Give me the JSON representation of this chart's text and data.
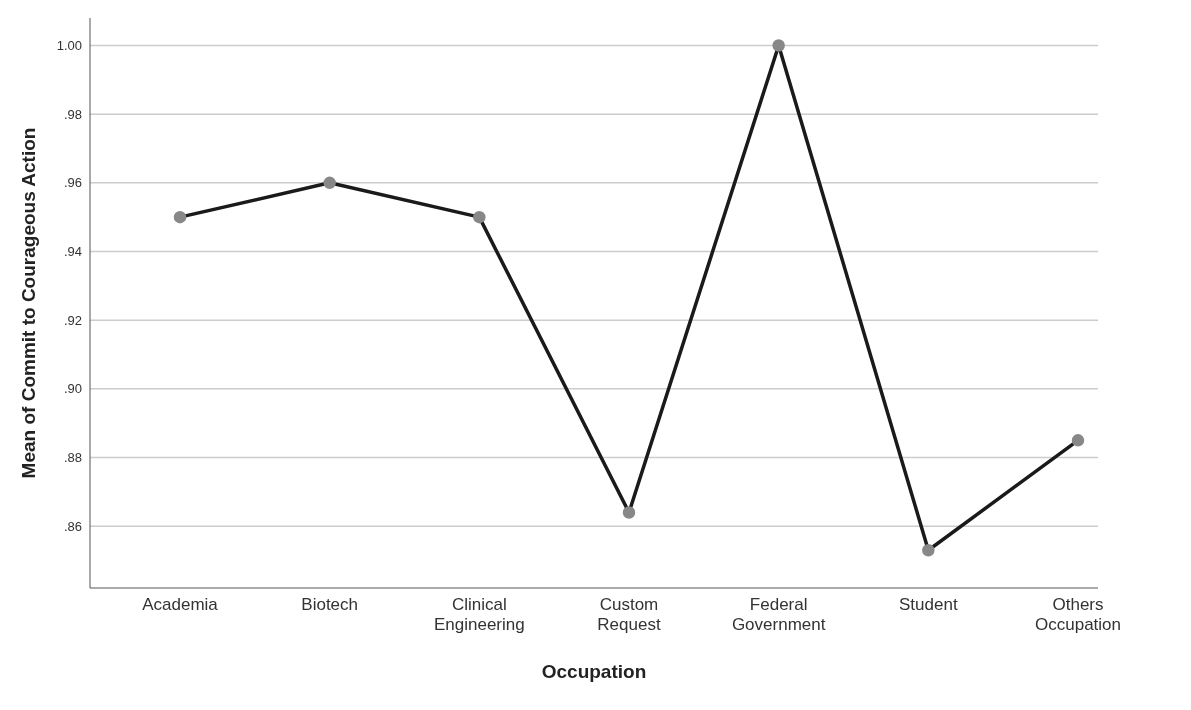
{
  "chart_data": {
    "type": "line",
    "xlabel": "Occupation",
    "ylabel": "Mean of Commit to Courageous Action",
    "categories": [
      "Academia",
      "Biotech",
      "Clinical Engineering",
      "Custom Request",
      "Federal Government",
      "Student",
      "Others Occupation"
    ],
    "series": [
      {
        "color": "#1a1a1a",
        "values": [
          0.95,
          0.96,
          0.95,
          0.864,
          1.0,
          0.853,
          0.885
        ]
      }
    ],
    "ylim": [
      0.842,
      1.008
    ],
    "yticks": [
      {
        "value": 0.86,
        "label": ".86"
      },
      {
        "value": 0.88,
        "label": ".88"
      },
      {
        "value": 0.9,
        "label": ".90"
      },
      {
        "value": 0.92,
        "label": ".92"
      },
      {
        "value": 0.94,
        "label": ".94"
      },
      {
        "value": 0.96,
        "label": ".96"
      },
      {
        "value": 0.98,
        "label": ".98"
      },
      {
        "value": 1.0,
        "label": "1.00"
      }
    ],
    "grid": "y",
    "marker": "circle",
    "line_style": "solid"
  }
}
